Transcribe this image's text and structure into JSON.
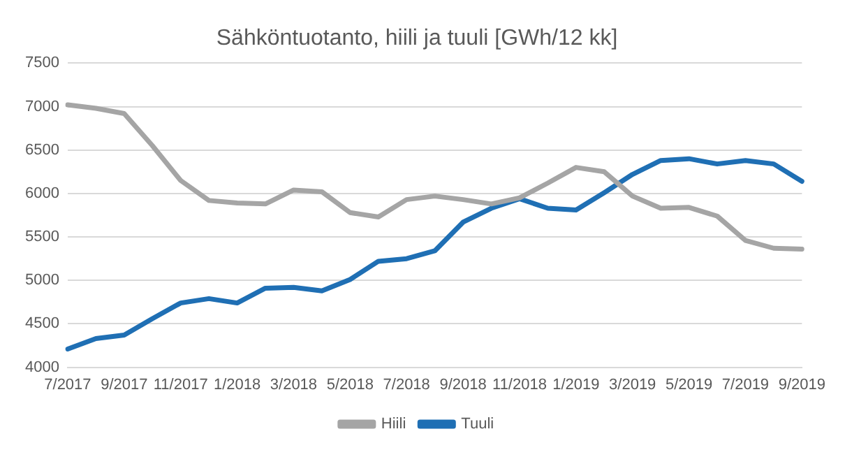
{
  "chart_data": {
    "type": "line",
    "title": "Sähköntuotanto, hiili ja tuuli [GWh/12 kk]",
    "categories": [
      "7/2017",
      null,
      "9/2017",
      null,
      "11/2017",
      null,
      "1/2018",
      null,
      "3/2018",
      null,
      "5/2018",
      null,
      "7/2018",
      null,
      "9/2018",
      null,
      "11/2018",
      null,
      "1/2019",
      null,
      "3/2019",
      null,
      "5/2019",
      null,
      "7/2019",
      null,
      "9/2019"
    ],
    "series": [
      {
        "name": "Hiili",
        "color": "#a5a5a5",
        "values": [
          7020,
          6980,
          6920,
          6550,
          6150,
          5920,
          5890,
          5880,
          6040,
          6020,
          5780,
          5730,
          5930,
          5970,
          5930,
          5880,
          5950,
          6120,
          6300,
          6250,
          5970,
          5830,
          5840,
          5740,
          5460,
          5370,
          5360
        ]
      },
      {
        "name": "Tuuli",
        "color": "#1f6fb4",
        "values": [
          4210,
          4330,
          4370,
          4560,
          4740,
          4790,
          4740,
          4910,
          4920,
          4880,
          5010,
          5220,
          5250,
          5340,
          5670,
          5830,
          5940,
          5830,
          5810,
          6010,
          6220,
          6380,
          6400,
          6340,
          6380,
          6340,
          6140
        ]
      }
    ],
    "ylim": [
      4000,
      7500
    ],
    "yticks": [
      4000,
      4500,
      5000,
      5500,
      6000,
      6500,
      7000,
      7500
    ],
    "grid": "y",
    "legend": "bottom",
    "marker": "none",
    "line_style": "solid"
  }
}
